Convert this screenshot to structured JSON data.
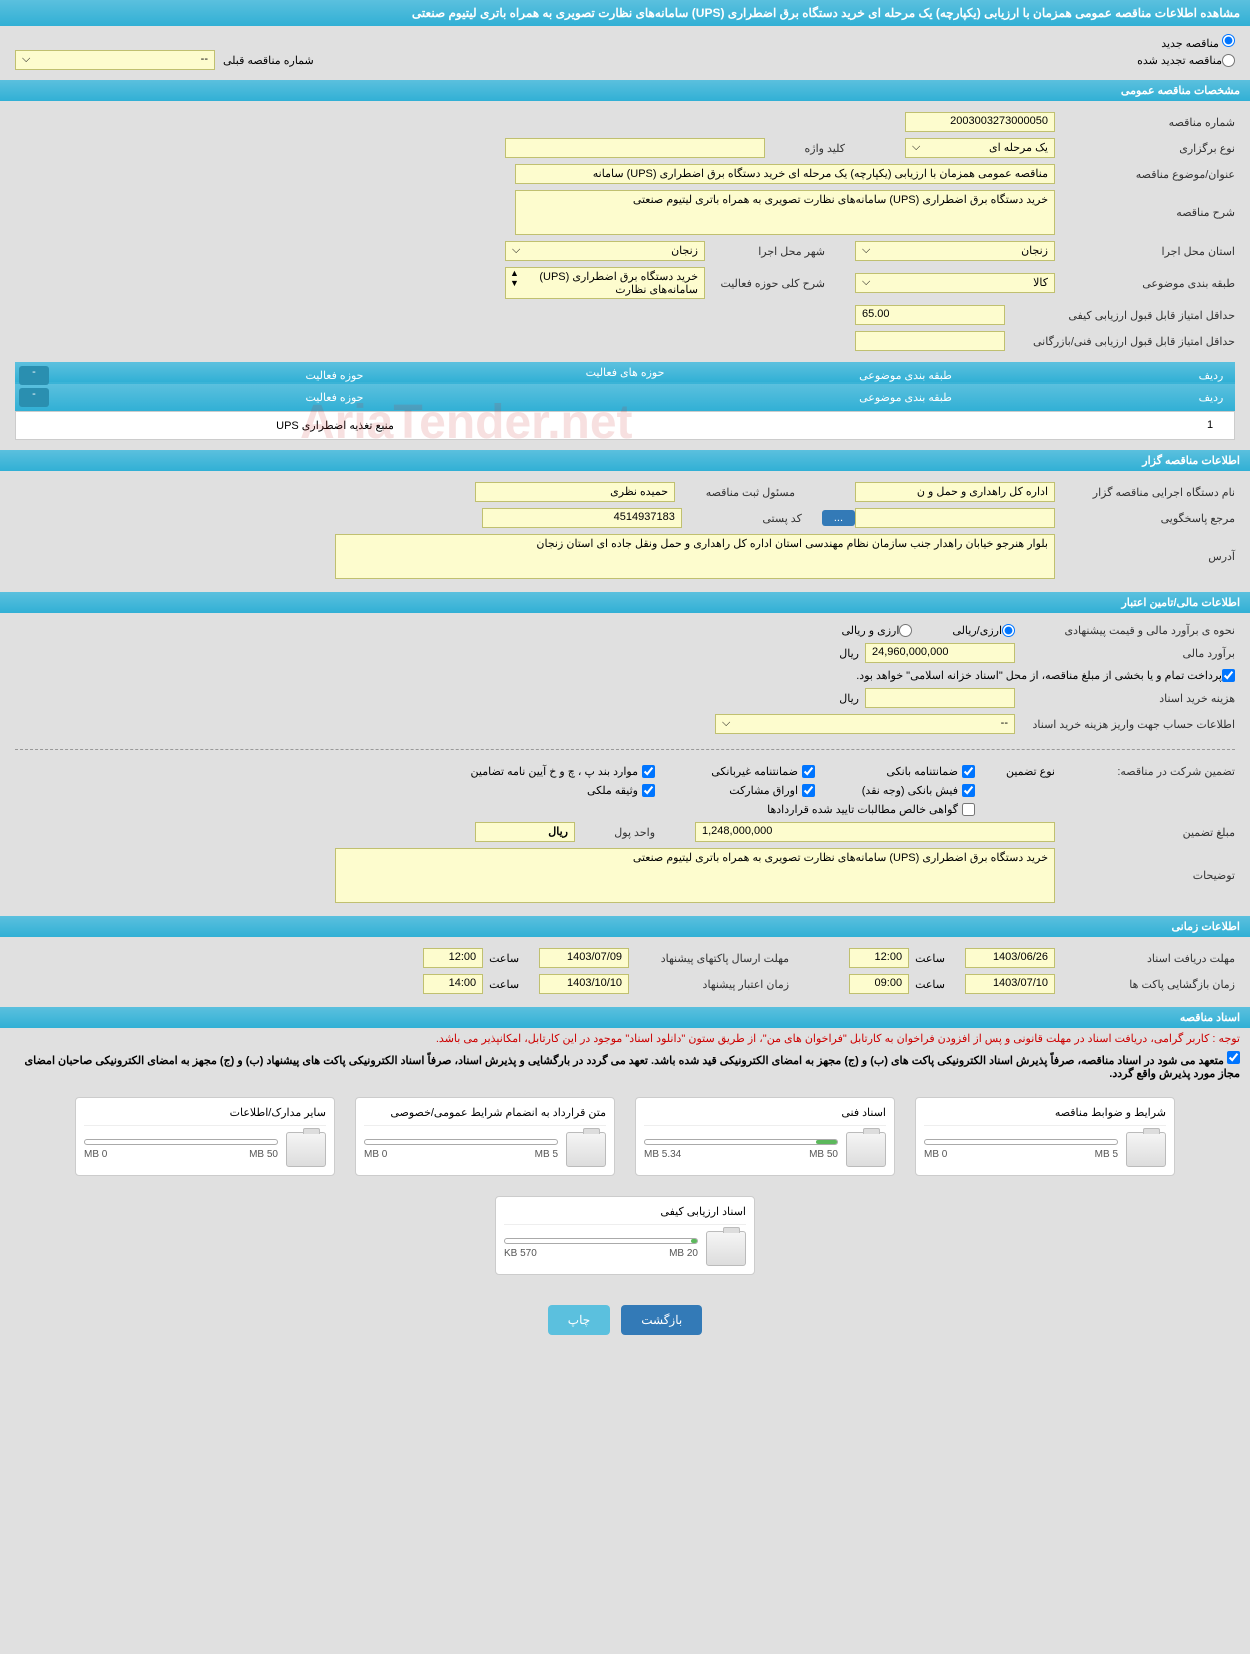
{
  "page_title": "مشاهده اطلاعات مناقصه عمومی همزمان با ارزیابی (یکپارچه) یک مرحله ای خرید دستگاه برق اضطراری (UPS) سامانه‌های نظارت تصویری به همراه باتری لیتیوم صنعتی",
  "radios": {
    "new_tender": "مناقصه جدید",
    "renewed_tender": "مناقصه تجدید شده",
    "prev_number_label": "شماره مناقصه قبلی",
    "prev_number_value": "--"
  },
  "sections": {
    "general": "مشخصات مناقصه عمومی",
    "holder": "اطلاعات مناقصه گزار",
    "financial": "اطلاعات مالی/تامین اعتبار",
    "timing": "اطلاعات زمانی",
    "documents": "اسناد مناقصه"
  },
  "general": {
    "tender_number_label": "شماره مناقصه",
    "tender_number": "2003003273000050",
    "keyword_label": "کلید واژه",
    "keyword": "",
    "type_label": "نوع برگزاری",
    "type": "یک مرحله ای",
    "title_label": "عنوان/موضوع مناقصه",
    "title": "مناقصه عمومی همزمان با ارزیابی (یکپارچه) یک مرحله ای خرید دستگاه برق اضطراری (UPS) سامانه",
    "desc_label": "شرح مناقصه",
    "desc": "خرید دستگاه برق اضطراری (UPS) سامانه‌های نظارت تصویری به همراه باتری لیتیوم صنعتی",
    "province_label": "استان محل اجرا",
    "province": "زنجان",
    "city_label": "شهر محل اجرا",
    "city": "زنجان",
    "category_label": "طبقه بندی موضوعی",
    "category": "کالا",
    "scope_label": "شرح کلی حوزه فعالیت",
    "scope": "خرید دستگاه برق اضطراری (UPS) سامانه‌های نظارت",
    "min_quality_label": "حداقل امتیاز قابل قبول ارزیابی کیفی",
    "min_quality": "65.00",
    "min_tech_label": "حداقل امتیاز قابل قبول ارزیابی فنی/بازرگانی",
    "min_tech": ""
  },
  "activity_table": {
    "title": "حوزه های فعالیت",
    "col_row": "ردیف",
    "col_category": "طبقه بندی موضوعی",
    "col_scope": "حوزه فعالیت",
    "rows": [
      {
        "n": "1",
        "category": "",
        "scope": "منبع تغذیه اضطراری UPS"
      }
    ],
    "toggle": "-"
  },
  "holder": {
    "org_label": "نام دستگاه اجرایی مناقصه گزار",
    "org": "اداره کل راهداری و حمل و ن",
    "registrar_label": "مسئول ثبت مناقصه",
    "registrar": "حمیده نظری",
    "contact_label": "مرجع پاسخگویی",
    "contact": "",
    "postal_label": "کد پستی",
    "postal": "4514937183",
    "address_label": "آدرس",
    "address": "بلوار هنرجو خیابان راهدار جنب سازمان نظام مهندسی استان اداره کل راهداری و حمل ونقل جاده ای استان زنجان",
    "more_btn": "..."
  },
  "financial": {
    "est_method_label": "نحوه ی برآورد مالی و قیمت پیشنهادی",
    "opt_rial": "ارزی/ریالی",
    "opt_both": "ارزی و ریالی",
    "est_label": "برآورد مالی",
    "est_value": "24,960,000,000",
    "currency": "ریال",
    "payment_note": "پرداخت تمام و یا بخشی از مبلغ مناقصه، از محل \"اسناد خزانه اسلامی\" خواهد بود.",
    "doc_cost_label": "هزینه خرید اسناد",
    "doc_cost": "",
    "account_label": "اطلاعات حساب جهت واریز هزینه خرید اسناد",
    "account_value": "--",
    "guarantee_intro": "تضمین شرکت در مناقصه:",
    "guarantee_type_label": "نوع تضمین",
    "chk_bank_guarantee": "ضمانتنامه بانکی",
    "chk_nonbank_guarantee": "ضمانتنامه غیربانکی",
    "chk_items_bpjh": "موارد بند پ ، چ و خ آیین نامه تضامین",
    "chk_bank_receipt": "فیش بانکی (وجه نقد)",
    "chk_bonds": "اوراق مشارکت",
    "chk_property": "وثیقه ملکی",
    "chk_net_claims": "گواهی خالص مطالبات تایید شده قراردادها",
    "guarantee_amount_label": "مبلغ تضمین",
    "guarantee_amount": "1,248,000,000",
    "unit_label": "واحد پول",
    "unit": "ریال",
    "notes_label": "توضیحات",
    "notes": "خرید دستگاه برق اضطراری (UPS) سامانه‌های نظارت تصویری به همراه باتری لیتیوم صنعتی"
  },
  "timing": {
    "receive_label": "مهلت دریافت اسناد",
    "receive_date": "1403/06/26",
    "receive_time_label": "ساعت",
    "receive_time": "12:00",
    "submit_label": "مهلت ارسال پاکتهای پیشنهاد",
    "submit_date": "1403/07/09",
    "submit_time": "12:00",
    "open_label": "زمان بازگشایی پاکت ها",
    "open_date": "1403/07/10",
    "open_time": "09:00",
    "validity_label": "زمان اعتبار پیشنهاد",
    "validity_date": "1403/10/10",
    "validity_time": "14:00"
  },
  "documents": {
    "note1": "توجه : کاربر گرامی، دریافت اسناد در مهلت قانونی و پس از افزودن فراخوان به کارتابل \"فراخوان های من\"، از طریق ستون \"دانلود اسناد\" موجود در این کارتابل، امکانپذیر می باشد.",
    "note2": "متعهد می شود در اسناد مناقصه، صرفاً پذیرش اسناد الکترونیکی پاکت های (ب) و (ج) مجهز به امضای الکترونیکی قید شده باشد. تعهد می گردد در بارگشایی و پذیرش اسناد، صرفاً اسناد الکترونیکی پاکت های پیشنهاد (ب) و (ج) مجهز به امضای الکترونیکی صاحبان امضای مجاز مورد پذیرش واقع گردد.",
    "cards": [
      {
        "title": "شرایط و ضوابط مناقصه",
        "max": "5 MB",
        "used": "0 MB",
        "pct": 0
      },
      {
        "title": "اسناد فنی",
        "max": "50 MB",
        "used": "5.34 MB",
        "pct": 11
      },
      {
        "title": "متن قرارداد به انضمام شرایط عمومی/خصوصی",
        "max": "5 MB",
        "used": "0 MB",
        "pct": 0
      },
      {
        "title": "سایر مدارک/اطلاعات",
        "max": "50 MB",
        "used": "0 MB",
        "pct": 0
      },
      {
        "title": "اسناد ارزیابی کیفی",
        "max": "20 MB",
        "used": "570 KB",
        "pct": 3
      }
    ]
  },
  "buttons": {
    "print": "چاپ",
    "back": "بازگشت"
  },
  "watermark": "AriaTender.net"
}
